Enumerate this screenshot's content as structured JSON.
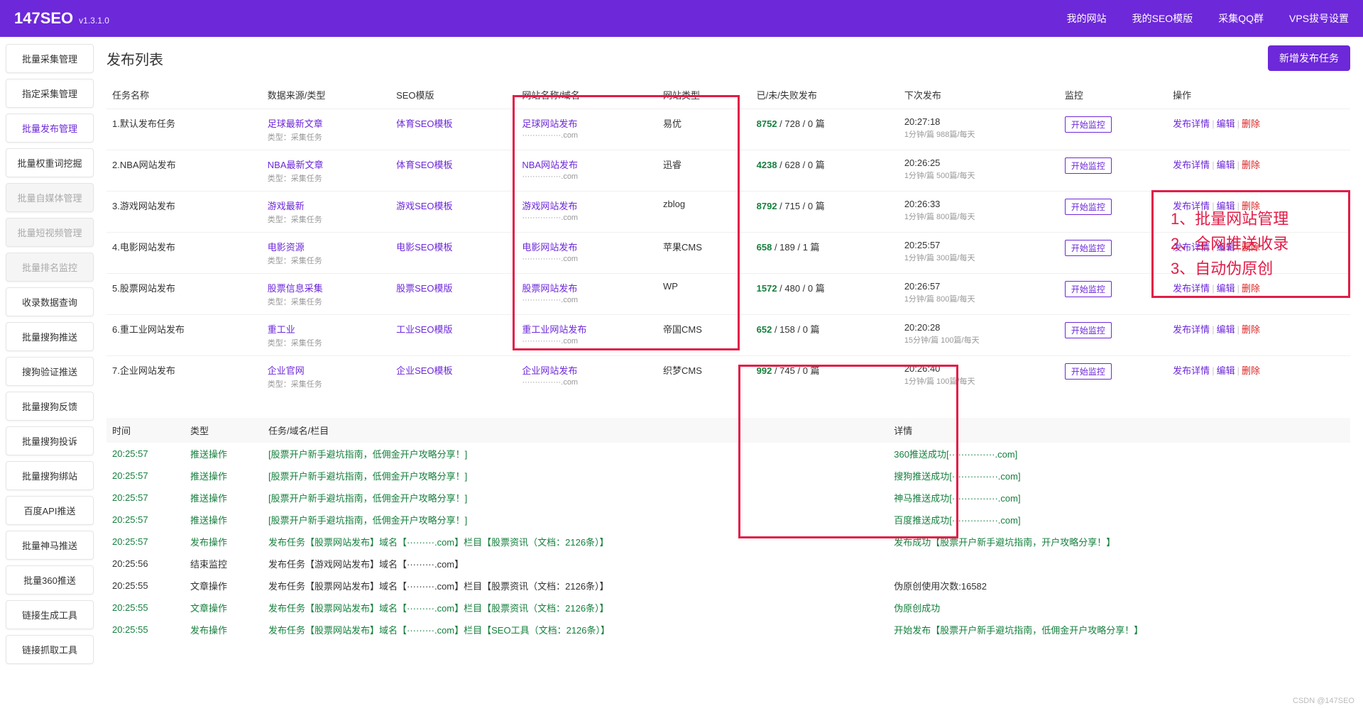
{
  "header": {
    "logo": "147SEO",
    "version": "v1.3.1.0",
    "nav": [
      "我的网站",
      "我的SEO模版",
      "采集QQ群",
      "VPS拔号设置"
    ]
  },
  "sidebar": [
    {
      "label": "批量采集管理",
      "state": ""
    },
    {
      "label": "指定采集管理",
      "state": ""
    },
    {
      "label": "批量发布管理",
      "state": "active"
    },
    {
      "label": "批量权重词挖掘",
      "state": ""
    },
    {
      "label": "批量自媒体管理",
      "state": "disabled"
    },
    {
      "label": "批量短视频管理",
      "state": "disabled"
    },
    {
      "label": "批量排名监控",
      "state": "disabled"
    },
    {
      "label": "收录数据查询",
      "state": ""
    },
    {
      "label": "批量搜狗推送",
      "state": ""
    },
    {
      "label": "搜狗验证推送",
      "state": ""
    },
    {
      "label": "批量搜狗反馈",
      "state": ""
    },
    {
      "label": "批量搜狗投诉",
      "state": ""
    },
    {
      "label": "批量搜狗绑站",
      "state": ""
    },
    {
      "label": "百度API推送",
      "state": ""
    },
    {
      "label": "批量神马推送",
      "state": ""
    },
    {
      "label": "批量360推送",
      "state": ""
    },
    {
      "label": "链接生成工具",
      "state": ""
    },
    {
      "label": "链接抓取工具",
      "state": ""
    }
  ],
  "page_title": "发布列表",
  "add_button": "新增发布任务",
  "columns": [
    "任务名称",
    "数据来源/类型",
    "SEO模版",
    "网站名称/域名",
    "网站类型",
    "已/未/失败发布",
    "下次发布",
    "监控",
    "操作"
  ],
  "ops": {
    "detail": "发布详情",
    "edit": "编辑",
    "del": "删除"
  },
  "mon_btn": "开始监控",
  "rows": [
    {
      "name": "1.默认发布任务",
      "src": "足球最新文章",
      "src_sub": "类型：采集任务",
      "tpl": "体育SEO模板",
      "site": "足球网站发布",
      "site_sub": "···············.com",
      "type": "易优",
      "done": "8752",
      "rest": " / 728 / 0 篇",
      "next": "20:27:18",
      "next_sub": "1分钟/篇\n988篇/每天"
    },
    {
      "name": "2.NBA网站发布",
      "src": "NBA最新文章",
      "src_sub": "类型：采集任务",
      "tpl": "体育SEO模板",
      "site": "NBA网站发布",
      "site_sub": "···············.com",
      "type": "迅睿",
      "done": "4238",
      "rest": " / 628 / 0 篇",
      "next": "20:26:25",
      "next_sub": "1分钟/篇\n500篇/每天"
    },
    {
      "name": "3.游戏网站发布",
      "src": "游戏最新",
      "src_sub": "类型：采集任务",
      "tpl": "游戏SEO模板",
      "site": "游戏网站发布",
      "site_sub": "···············.com",
      "type": "zblog",
      "done": "8792",
      "rest": " / 715 / 0 篇",
      "next": "20:26:33",
      "next_sub": "1分钟/篇\n800篇/每天"
    },
    {
      "name": "4.电影网站发布",
      "src": "电影资源",
      "src_sub": "类型：采集任务",
      "tpl": "电影SEO模板",
      "site": "电影网站发布",
      "site_sub": "···············.com",
      "type": "苹果CMS",
      "done": "658",
      "rest": " / 189 / 1 篇",
      "next": "20:25:57",
      "next_sub": "1分钟/篇\n300篇/每天"
    },
    {
      "name": "5.股票网站发布",
      "src": "股票信息采集",
      "src_sub": "类型：采集任务",
      "tpl": "股票SEO模版",
      "site": "股票网站发布",
      "site_sub": "···············.com",
      "type": "WP",
      "done": "1572",
      "rest": " / 480 / 0 篇",
      "next": "20:26:57",
      "next_sub": "1分钟/篇\n800篇/每天"
    },
    {
      "name": "6.重工业网站发布",
      "src": "重工业",
      "src_sub": "类型：采集任务",
      "tpl": "工业SEO模版",
      "site": "重工业网站发布",
      "site_sub": "···············.com",
      "type": "帝国CMS",
      "done": "652",
      "rest": " / 158 / 0 篇",
      "next": "20:20:28",
      "next_sub": "15分钟/篇\n100篇/每天"
    },
    {
      "name": "7.企业网站发布",
      "src": "企业官网",
      "src_sub": "类型：采集任务",
      "tpl": "企业SEO模板",
      "site": "企业网站发布",
      "site_sub": "···············.com",
      "type": "织梦CMS",
      "done": "992",
      "rest": " / 745 / 0 篇",
      "next": "20:26:40",
      "next_sub": "1分钟/篇\n100篇/每天"
    }
  ],
  "log_columns": [
    "时间",
    "类型",
    "任务/域名/栏目",
    "详情"
  ],
  "logs": [
    {
      "t": "20:25:57",
      "g": true,
      "type": "推送操作",
      "task": "[股票开户新手避坑指南，低佣金开户攻略分享！]",
      "detail": "360推送成功[···············.com]"
    },
    {
      "t": "20:25:57",
      "g": true,
      "type": "推送操作",
      "task": "[股票开户新手避坑指南，低佣金开户攻略分享！]",
      "detail": "搜狗推送成功[···············.com]"
    },
    {
      "t": "20:25:57",
      "g": true,
      "type": "推送操作",
      "task": "[股票开户新手避坑指南，低佣金开户攻略分享！]",
      "detail": "神马推送成功[···············.com]"
    },
    {
      "t": "20:25:57",
      "g": true,
      "type": "推送操作",
      "task": "[股票开户新手避坑指南，低佣金开户攻略分享！]",
      "detail": "百度推送成功[···············.com]"
    },
    {
      "t": "20:25:57",
      "g": true,
      "type": "发布操作",
      "task": "发布任务【股票网站发布】域名【·········.com】栏目【股票资讯（文档：2126条）】",
      "detail": "发布成功【股票开户新手避坑指南，开户攻略分享！】"
    },
    {
      "t": "20:25:56",
      "g": false,
      "type": "结束监控",
      "task": "发布任务【游戏网站发布】域名【·········.com】",
      "detail": ""
    },
    {
      "t": "20:25:55",
      "g": false,
      "type": "文章操作",
      "task": "发布任务【股票网站发布】域名【·········.com】栏目【股票资讯（文档：2126条）】",
      "detail": "伪原创使用次数:16582"
    },
    {
      "t": "20:25:55",
      "g": true,
      "type": "文章操作",
      "task": "发布任务【股票网站发布】域名【·········.com】栏目【股票资讯（文档：2126条）】",
      "detail": "伪原创成功"
    },
    {
      "t": "20:25:55",
      "g": true,
      "type": "发布操作",
      "task": "发布任务【股票网站发布】域名【·········.com】栏目【SEO工具（文档：2126条）】",
      "detail": "开始发布【股票开户新手避坑指南，低佣金开户攻略分享！】"
    }
  ],
  "annot": [
    "1、批量网站管理",
    "2、全网推送收录",
    "3、自动伪原创"
  ],
  "watermark": "CSDN @147SEO"
}
